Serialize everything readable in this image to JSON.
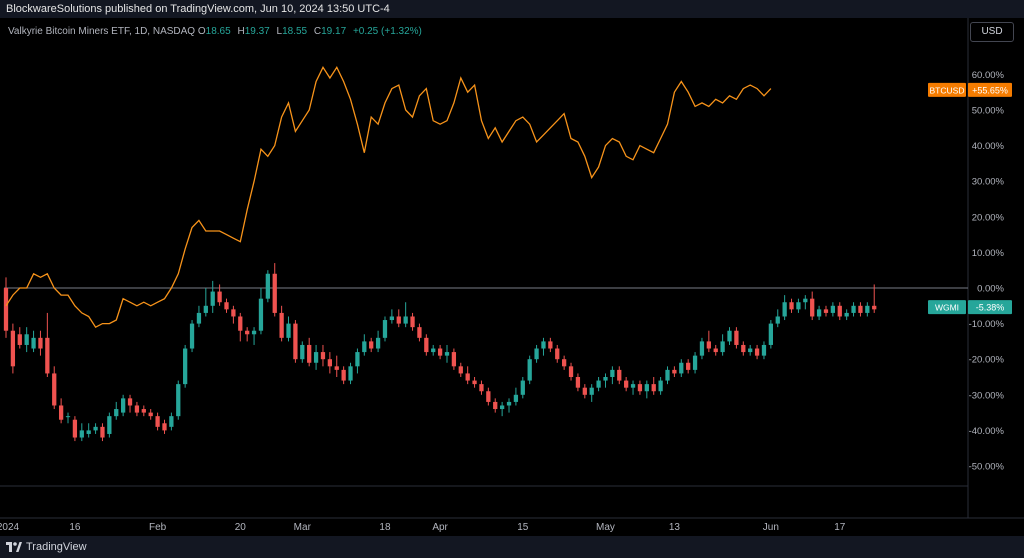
{
  "header": {
    "published_text": "BlockwareSolutions published on TradingView.com, Jun 10, 2024 13:50 UTC-4"
  },
  "legend": {
    "symbol": "Valkyrie Bitcoin Miners ETF, 1D, NASDAQ",
    "o_label": "O",
    "o_value": "18.65",
    "h_label": "H",
    "h_value": "19.37",
    "l_label": "L",
    "l_value": "18.55",
    "c_label": "C",
    "c_value": "19.17",
    "change": "+0.25 (+1.32%)"
  },
  "currency_button": "USD",
  "footer": {
    "brand": "TradingView"
  },
  "colors": {
    "background": "#000000",
    "btc_line": "#f7931a",
    "up": "#26a69a",
    "down": "#ef5350",
    "zero_line": "#787b86",
    "axis_text": "#b2b5be"
  },
  "chart_data": {
    "type": "line",
    "y_axis": {
      "unit": "%",
      "ticks": [
        60,
        50,
        40,
        30,
        20,
        10,
        0,
        -10,
        -20,
        -30,
        -40,
        -50
      ],
      "tick_labels": [
        "60.00%",
        "50.00%",
        "40.00%",
        "30.00%",
        "20.00%",
        "10.00%",
        "0.00%",
        "-10.00%",
        "-20.00%",
        "-30.00%",
        "-40.00%",
        "-50.00%"
      ],
      "range": [
        -55,
        67
      ]
    },
    "x_axis": {
      "tick_labels": [
        "2024",
        "16",
        "Feb",
        "20",
        "Mar",
        "18",
        "Apr",
        "15",
        "May",
        "13",
        "Jun",
        "17"
      ],
      "tick_index": [
        0,
        10,
        22,
        34,
        43,
        55,
        63,
        75,
        87,
        97,
        111,
        121
      ],
      "index_range": [
        0,
        128
      ]
    },
    "series": [
      {
        "name": "BTCUSD",
        "label": "BTCUSD",
        "last_label": "+55.65%",
        "last": 55.65,
        "values": [
          -5,
          -2,
          0,
          0,
          4,
          3,
          4,
          0,
          -2,
          -2,
          -5,
          -7,
          -8,
          -11,
          -10,
          -10,
          -9,
          -3,
          -4,
          -5,
          -4,
          -5,
          -4,
          -3,
          0,
          4,
          11,
          17,
          19,
          16,
          16,
          16,
          15,
          14,
          13,
          22,
          30,
          39,
          37,
          40,
          48,
          52,
          44,
          47,
          50,
          58,
          62,
          59,
          62,
          58,
          53,
          46,
          38,
          48,
          46,
          52,
          56,
          57,
          50,
          48,
          54,
          56,
          47,
          46,
          47,
          52,
          59,
          55,
          57,
          47,
          42,
          45,
          41,
          44,
          47,
          48,
          46,
          41,
          43,
          45,
          47,
          49,
          42,
          41,
          37,
          31,
          34,
          40,
          42,
          41,
          37,
          36,
          40,
          39,
          38,
          42,
          46,
          55,
          58,
          55,
          51,
          52,
          51,
          53,
          52,
          54,
          53,
          56,
          57,
          56,
          54,
          56
        ],
        "color": "#f7931a"
      },
      {
        "name": "WGMI",
        "label": "WGMI",
        "last_label": "-5.38%",
        "last": -5.38,
        "type": "candlestick",
        "candles": [
          [
            0,
            -12,
            3,
            -14,
            -2
          ],
          [
            -12,
            -22,
            -10,
            -24,
            -12
          ],
          [
            -13,
            -16,
            -11,
            -17,
            -15
          ],
          [
            -16,
            -13,
            -11,
            -18,
            -17
          ],
          [
            -17,
            -14,
            -12,
            -18,
            -17
          ],
          [
            -14,
            -17,
            -12,
            -19,
            -14
          ],
          [
            -14,
            -24,
            -7,
            -25,
            -17
          ],
          [
            -24,
            -33,
            -22,
            -34,
            -25
          ],
          [
            -33,
            -37,
            -31,
            -38,
            -33
          ],
          [
            -36,
            -36,
            -35,
            -38,
            -36
          ],
          [
            -37,
            -42,
            -36,
            -43,
            -37
          ],
          [
            -42,
            -40,
            -38,
            -43,
            -41
          ],
          [
            -41,
            -40,
            -38,
            -42,
            -40
          ],
          [
            -40,
            -39,
            -38,
            -41,
            -39
          ],
          [
            -39,
            -42,
            -38,
            -43,
            -39
          ],
          [
            -41,
            -36,
            -35,
            -42,
            -40
          ],
          [
            -36,
            -34,
            -32,
            -37,
            -35
          ],
          [
            -35,
            -31,
            -30,
            -36,
            -34
          ],
          [
            -31,
            -33,
            -30,
            -35,
            -31
          ],
          [
            -33,
            -35,
            -32,
            -36,
            -34
          ],
          [
            -34,
            -35,
            -33,
            -36,
            -34
          ],
          [
            -35,
            -36,
            -34,
            -37,
            -35
          ],
          [
            -36,
            -39,
            -35,
            -40,
            -36
          ],
          [
            -38,
            -40,
            -37,
            -41,
            -38
          ],
          [
            -39,
            -36,
            -35,
            -40,
            -38
          ],
          [
            -36,
            -27,
            -26,
            -37,
            -34
          ],
          [
            -27,
            -17,
            -16,
            -28,
            -24
          ],
          [
            -17,
            -10,
            -9,
            -18,
            -16
          ],
          [
            -10,
            -7,
            -5,
            -11,
            -9
          ],
          [
            -7,
            -5,
            0,
            -8,
            -6
          ],
          [
            -5,
            -1,
            2,
            -7,
            -4
          ],
          [
            -1,
            -4,
            1,
            -5,
            -2
          ],
          [
            -4,
            -6,
            -3,
            -7,
            -5
          ],
          [
            -6,
            -8,
            -5,
            -10,
            -7
          ],
          [
            -8,
            -12,
            -7,
            -15,
            -9
          ],
          [
            -12,
            -13,
            -11,
            -15,
            -12
          ],
          [
            -13,
            -12,
            -11,
            -16,
            -13
          ],
          [
            -12,
            -3,
            0,
            -13,
            -10
          ],
          [
            -3,
            4,
            5,
            -4,
            -1
          ],
          [
            4,
            -7,
            7,
            -8,
            2
          ],
          [
            -7,
            -14,
            -5,
            -15,
            -8
          ],
          [
            -14,
            -10,
            -8,
            -15,
            -13
          ],
          [
            -10,
            -20,
            -9,
            -21,
            -11
          ],
          [
            -20,
            -16,
            -15,
            -21,
            -19
          ],
          [
            -16,
            -21,
            -14,
            -22,
            -17
          ],
          [
            -21,
            -18,
            -16,
            -23,
            -20
          ],
          [
            -18,
            -20,
            -16,
            -22,
            -19
          ],
          [
            -20,
            -22,
            -18,
            -24,
            -21
          ],
          [
            -22,
            -23,
            -19,
            -25,
            -22
          ],
          [
            -23,
            -26,
            -22,
            -27,
            -24
          ],
          [
            -26,
            -22,
            -21,
            -27,
            -25
          ],
          [
            -22,
            -18,
            -17,
            -24,
            -21
          ],
          [
            -18,
            -15,
            -13,
            -19,
            -17
          ],
          [
            -15,
            -17,
            -14,
            -18,
            -16
          ],
          [
            -17,
            -14,
            -12,
            -18,
            -15
          ],
          [
            -14,
            -9,
            -8,
            -15,
            -12
          ],
          [
            -9,
            -8,
            -6,
            -10,
            -9
          ],
          [
            -8,
            -10,
            -6,
            -11,
            -9
          ],
          [
            -10,
            -8,
            -4,
            -11,
            -9
          ],
          [
            -8,
            -11,
            -7,
            -12,
            -10
          ],
          [
            -11,
            -14,
            -10,
            -15,
            -12
          ],
          [
            -14,
            -18,
            -13,
            -19,
            -15
          ],
          [
            -18,
            -17,
            -16,
            -19,
            -18
          ],
          [
            -17,
            -19,
            -16,
            -20,
            -18
          ],
          [
            -19,
            -18,
            -16,
            -21,
            -18
          ],
          [
            -18,
            -22,
            -17,
            -23,
            -20
          ],
          [
            -22,
            -24,
            -21,
            -25,
            -23
          ],
          [
            -24,
            -26,
            -22,
            -27,
            -25
          ],
          [
            -26,
            -27,
            -25,
            -28,
            -26
          ],
          [
            -27,
            -29,
            -26,
            -30,
            -28
          ],
          [
            -29,
            -32,
            -28,
            -33,
            -30
          ],
          [
            -32,
            -34,
            -31,
            -35,
            -33
          ],
          [
            -34,
            -33,
            -32,
            -36,
            -34
          ],
          [
            -33,
            -32,
            -31,
            -35,
            -33
          ],
          [
            -32,
            -30,
            -28,
            -33,
            -31
          ],
          [
            -30,
            -26,
            -25,
            -31,
            -28
          ],
          [
            -26,
            -20,
            -19,
            -27,
            -24
          ],
          [
            -20,
            -17,
            -16,
            -21,
            -19
          ],
          [
            -17,
            -15,
            -14,
            -19,
            -16
          ],
          [
            -15,
            -17,
            -14,
            -18,
            -16
          ],
          [
            -17,
            -20,
            -16,
            -21,
            -18
          ],
          [
            -20,
            -22,
            -19,
            -23,
            -21
          ],
          [
            -22,
            -25,
            -21,
            -26,
            -23
          ],
          [
            -25,
            -28,
            -24,
            -29,
            -26
          ],
          [
            -28,
            -30,
            -27,
            -31,
            -29
          ],
          [
            -30,
            -28,
            -27,
            -32,
            -29
          ],
          [
            -28,
            -26,
            -25,
            -29,
            -27
          ],
          [
            -26,
            -25,
            -24,
            -28,
            -26
          ],
          [
            -25,
            -23,
            -22,
            -27,
            -24
          ],
          [
            -23,
            -26,
            -22,
            -27,
            -24
          ],
          [
            -26,
            -28,
            -25,
            -29,
            -27
          ],
          [
            -28,
            -27,
            -26,
            -30,
            -28
          ],
          [
            -27,
            -29,
            -26,
            -30,
            -28
          ],
          [
            -29,
            -27,
            -26,
            -31,
            -28
          ],
          [
            -27,
            -29,
            -25,
            -30,
            -28
          ],
          [
            -29,
            -26,
            -25,
            -30,
            -28
          ],
          [
            -26,
            -23,
            -22,
            -27,
            -25
          ],
          [
            -23,
            -24,
            -22,
            -25,
            -24
          ],
          [
            -24,
            -21,
            -20,
            -25,
            -22
          ],
          [
            -21,
            -23,
            -20,
            -24,
            -22
          ],
          [
            -23,
            -19,
            -18,
            -24,
            -21
          ],
          [
            -19,
            -15,
            -14,
            -20,
            -17
          ],
          [
            -15,
            -17,
            -12,
            -18,
            -16
          ],
          [
            -17,
            -18,
            -16,
            -19,
            -17
          ],
          [
            -18,
            -15,
            -13,
            -19,
            -16
          ],
          [
            -15,
            -12,
            -11,
            -16,
            -14
          ],
          [
            -12,
            -16,
            -11,
            -17,
            -14
          ],
          [
            -16,
            -18,
            -15,
            -19,
            -17
          ],
          [
            -18,
            -17,
            -16,
            -19,
            -18
          ],
          [
            -17,
            -19,
            -16,
            -20,
            -18
          ],
          [
            -19,
            -16,
            -15,
            -20,
            -17
          ],
          [
            -16,
            -10,
            -9,
            -17,
            -13
          ],
          [
            -10,
            -8,
            -6,
            -11,
            -9
          ],
          [
            -8,
            -4,
            -2,
            -9,
            -6
          ],
          [
            -4,
            -6,
            -3,
            -7,
            -5
          ],
          [
            -6,
            -4,
            -3,
            -7,
            -5
          ],
          [
            -4,
            -3,
            -2,
            -6,
            -4
          ],
          [
            -3,
            -8,
            -1,
            -9,
            -5
          ],
          [
            -8,
            -6,
            -5,
            -9,
            -7
          ],
          [
            -6,
            -7,
            -5,
            -8,
            -6
          ],
          [
            -7,
            -5,
            -4,
            -8,
            -6
          ],
          [
            -5,
            -8,
            -4,
            -9,
            -7
          ],
          [
            -8,
            -7,
            -6,
            -9,
            -8
          ],
          [
            -7,
            -5,
            -4,
            -8,
            -6
          ],
          [
            -5,
            -7,
            -4,
            -8,
            -6
          ],
          [
            -7,
            -5,
            -4,
            -8,
            -6
          ],
          [
            -5,
            -6,
            1,
            -7,
            -5
          ]
        ]
      }
    ],
    "zero_line": 0,
    "grid": false,
    "legend": "top-left"
  }
}
